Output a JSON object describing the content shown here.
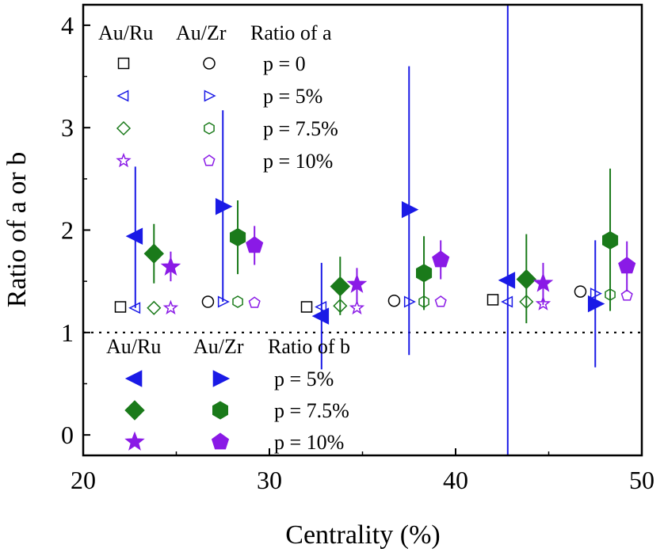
{
  "chart_data": {
    "type": "scatter",
    "title": "",
    "xlabel": "Centrality (%)",
    "ylabel": "Ratio of a or b",
    "xlim": [
      20,
      50
    ],
    "ylim": [
      -0.2,
      4.2
    ],
    "xticks": [
      20,
      30,
      40,
      50
    ],
    "yticks": [
      0,
      1,
      2,
      3,
      4
    ],
    "xtick_labels": [
      "20",
      "30",
      "40",
      "50"
    ],
    "ytick_labels": [
      "0",
      "1",
      "2",
      "3",
      "4"
    ],
    "reference_line": {
      "y": 1,
      "style": "dotted"
    },
    "colors": {
      "black": "#000000",
      "blue": "#1a1ae6",
      "green": "#1a7a1a",
      "purple": "#8a1ae6"
    },
    "series": [
      {
        "name": "Au/Ru p = 0 (a)",
        "marker": "square",
        "filled": false,
        "color": "black",
        "points": [
          {
            "x": 22.0,
            "y": 1.25
          },
          {
            "x": 32.0,
            "y": 1.25
          },
          {
            "x": 42.0,
            "y": 1.32
          }
        ]
      },
      {
        "name": "Au/Zr p = 0 (a)",
        "marker": "circle",
        "filled": false,
        "color": "black",
        "points": [
          {
            "x": 26.7,
            "y": 1.3
          },
          {
            "x": 36.7,
            "y": 1.31
          },
          {
            "x": 46.7,
            "y": 1.4
          }
        ]
      },
      {
        "name": "Au/Ru p = 5% (a)",
        "marker": "tri-left",
        "filled": false,
        "color": "blue",
        "points": [
          {
            "x": 22.8,
            "y": 1.24
          },
          {
            "x": 32.8,
            "y": 1.25
          },
          {
            "x": 42.8,
            "y": 1.3
          }
        ]
      },
      {
        "name": "Au/Zr p = 5% (a)",
        "marker": "tri-right",
        "filled": false,
        "color": "blue",
        "points": [
          {
            "x": 27.5,
            "y": 1.3
          },
          {
            "x": 37.5,
            "y": 1.3
          },
          {
            "x": 47.5,
            "y": 1.38
          }
        ]
      },
      {
        "name": "Au/Ru p = 7.5% (a)",
        "marker": "diamond",
        "filled": false,
        "color": "green",
        "points": [
          {
            "x": 23.8,
            "y": 1.24
          },
          {
            "x": 33.8,
            "y": 1.26
          },
          {
            "x": 43.8,
            "y": 1.3
          }
        ]
      },
      {
        "name": "Au/Zr p = 7.5% (a)",
        "marker": "hexagon",
        "filled": false,
        "color": "green",
        "points": [
          {
            "x": 28.3,
            "y": 1.3
          },
          {
            "x": 38.3,
            "y": 1.3
          },
          {
            "x": 48.3,
            "y": 1.37
          }
        ]
      },
      {
        "name": "Au/Ru p = 10% (a)",
        "marker": "star",
        "filled": false,
        "color": "purple",
        "points": [
          {
            "x": 24.7,
            "y": 1.24
          },
          {
            "x": 34.7,
            "y": 1.24
          },
          {
            "x": 44.7,
            "y": 1.28
          }
        ]
      },
      {
        "name": "Au/Zr p = 10% (a)",
        "marker": "pentagon",
        "filled": false,
        "color": "purple",
        "points": [
          {
            "x": 29.2,
            "y": 1.29
          },
          {
            "x": 39.2,
            "y": 1.3
          },
          {
            "x": 49.2,
            "y": 1.36
          }
        ]
      },
      {
        "name": "Au/Ru p = 5% (b)",
        "marker": "tri-left",
        "filled": true,
        "color": "blue",
        "points": [
          {
            "x": 22.8,
            "y": 1.94,
            "ylo": 1.24,
            "yhi": 2.62
          },
          {
            "x": 32.8,
            "y": 1.16,
            "ylo": 0.64,
            "yhi": 1.68
          },
          {
            "x": 42.8,
            "y": 1.51,
            "ylo": -0.2,
            "yhi": 4.2
          }
        ]
      },
      {
        "name": "Au/Zr p = 5% (b)",
        "marker": "tri-right",
        "filled": true,
        "color": "blue",
        "points": [
          {
            "x": 27.5,
            "y": 2.23,
            "ylo": 1.3,
            "yhi": 3.17
          },
          {
            "x": 37.5,
            "y": 2.2,
            "ylo": 0.78,
            "yhi": 3.6
          },
          {
            "x": 47.5,
            "y": 1.28,
            "ylo": 0.66,
            "yhi": 1.9
          }
        ]
      },
      {
        "name": "Au/Ru p = 7.5% (b)",
        "marker": "diamond",
        "filled": true,
        "color": "green",
        "points": [
          {
            "x": 23.8,
            "y": 1.77,
            "ylo": 1.48,
            "yhi": 2.06
          },
          {
            "x": 33.8,
            "y": 1.45,
            "ylo": 1.17,
            "yhi": 1.74
          },
          {
            "x": 43.8,
            "y": 1.52,
            "ylo": 1.09,
            "yhi": 1.96
          }
        ]
      },
      {
        "name": "Au/Zr p = 7.5% (b)",
        "marker": "hexagon",
        "filled": true,
        "color": "green",
        "points": [
          {
            "x": 28.3,
            "y": 1.93,
            "ylo": 1.57,
            "yhi": 2.29
          },
          {
            "x": 38.3,
            "y": 1.58,
            "ylo": 1.22,
            "yhi": 1.94
          },
          {
            "x": 48.3,
            "y": 1.9,
            "ylo": 1.21,
            "yhi": 2.6
          }
        ]
      },
      {
        "name": "Au/Ru p = 10% (b)",
        "marker": "star",
        "filled": true,
        "color": "purple",
        "points": [
          {
            "x": 24.7,
            "y": 1.64,
            "ylo": 1.5,
            "yhi": 1.79
          },
          {
            "x": 34.7,
            "y": 1.47,
            "ylo": 1.3,
            "yhi": 1.63
          },
          {
            "x": 44.7,
            "y": 1.48,
            "ylo": 1.27,
            "yhi": 1.68
          }
        ]
      },
      {
        "name": "Au/Zr p = 10% (b)",
        "marker": "pentagon",
        "filled": true,
        "color": "purple",
        "points": [
          {
            "x": 29.2,
            "y": 1.85,
            "ylo": 1.66,
            "yhi": 2.04
          },
          {
            "x": 39.2,
            "y": 1.71,
            "ylo": 1.52,
            "yhi": 1.9
          },
          {
            "x": 49.2,
            "y": 1.65,
            "ylo": 1.4,
            "yhi": 1.89
          }
        ]
      }
    ],
    "legend_a": {
      "headers": [
        "Au/Ru",
        "Au/Zr",
        "Ratio of a"
      ],
      "rows": [
        {
          "label": "p = 0",
          "left": {
            "marker": "square",
            "color": "black"
          },
          "right": {
            "marker": "circle",
            "color": "black"
          }
        },
        {
          "label": "p = 5%",
          "left": {
            "marker": "tri-left",
            "color": "blue"
          },
          "right": {
            "marker": "tri-right",
            "color": "blue"
          }
        },
        {
          "label": "p = 7.5%",
          "left": {
            "marker": "diamond",
            "color": "green"
          },
          "right": {
            "marker": "hexagon",
            "color": "green"
          }
        },
        {
          "label": "p = 10%",
          "left": {
            "marker": "star",
            "color": "purple"
          },
          "right": {
            "marker": "pentagon",
            "color": "purple"
          }
        }
      ]
    },
    "legend_b": {
      "headers": [
        "Au/Ru",
        "Au/Zr",
        "Ratio of b"
      ],
      "rows": [
        {
          "label": "p = 5%",
          "left": {
            "marker": "tri-left",
            "color": "blue"
          },
          "right": {
            "marker": "tri-right",
            "color": "blue"
          }
        },
        {
          "label": "p = 7.5%",
          "left": {
            "marker": "diamond",
            "color": "green"
          },
          "right": {
            "marker": "hexagon",
            "color": "green"
          }
        },
        {
          "label": "p = 10%",
          "left": {
            "marker": "star",
            "color": "purple"
          },
          "right": {
            "marker": "pentagon",
            "color": "purple"
          }
        }
      ]
    }
  }
}
